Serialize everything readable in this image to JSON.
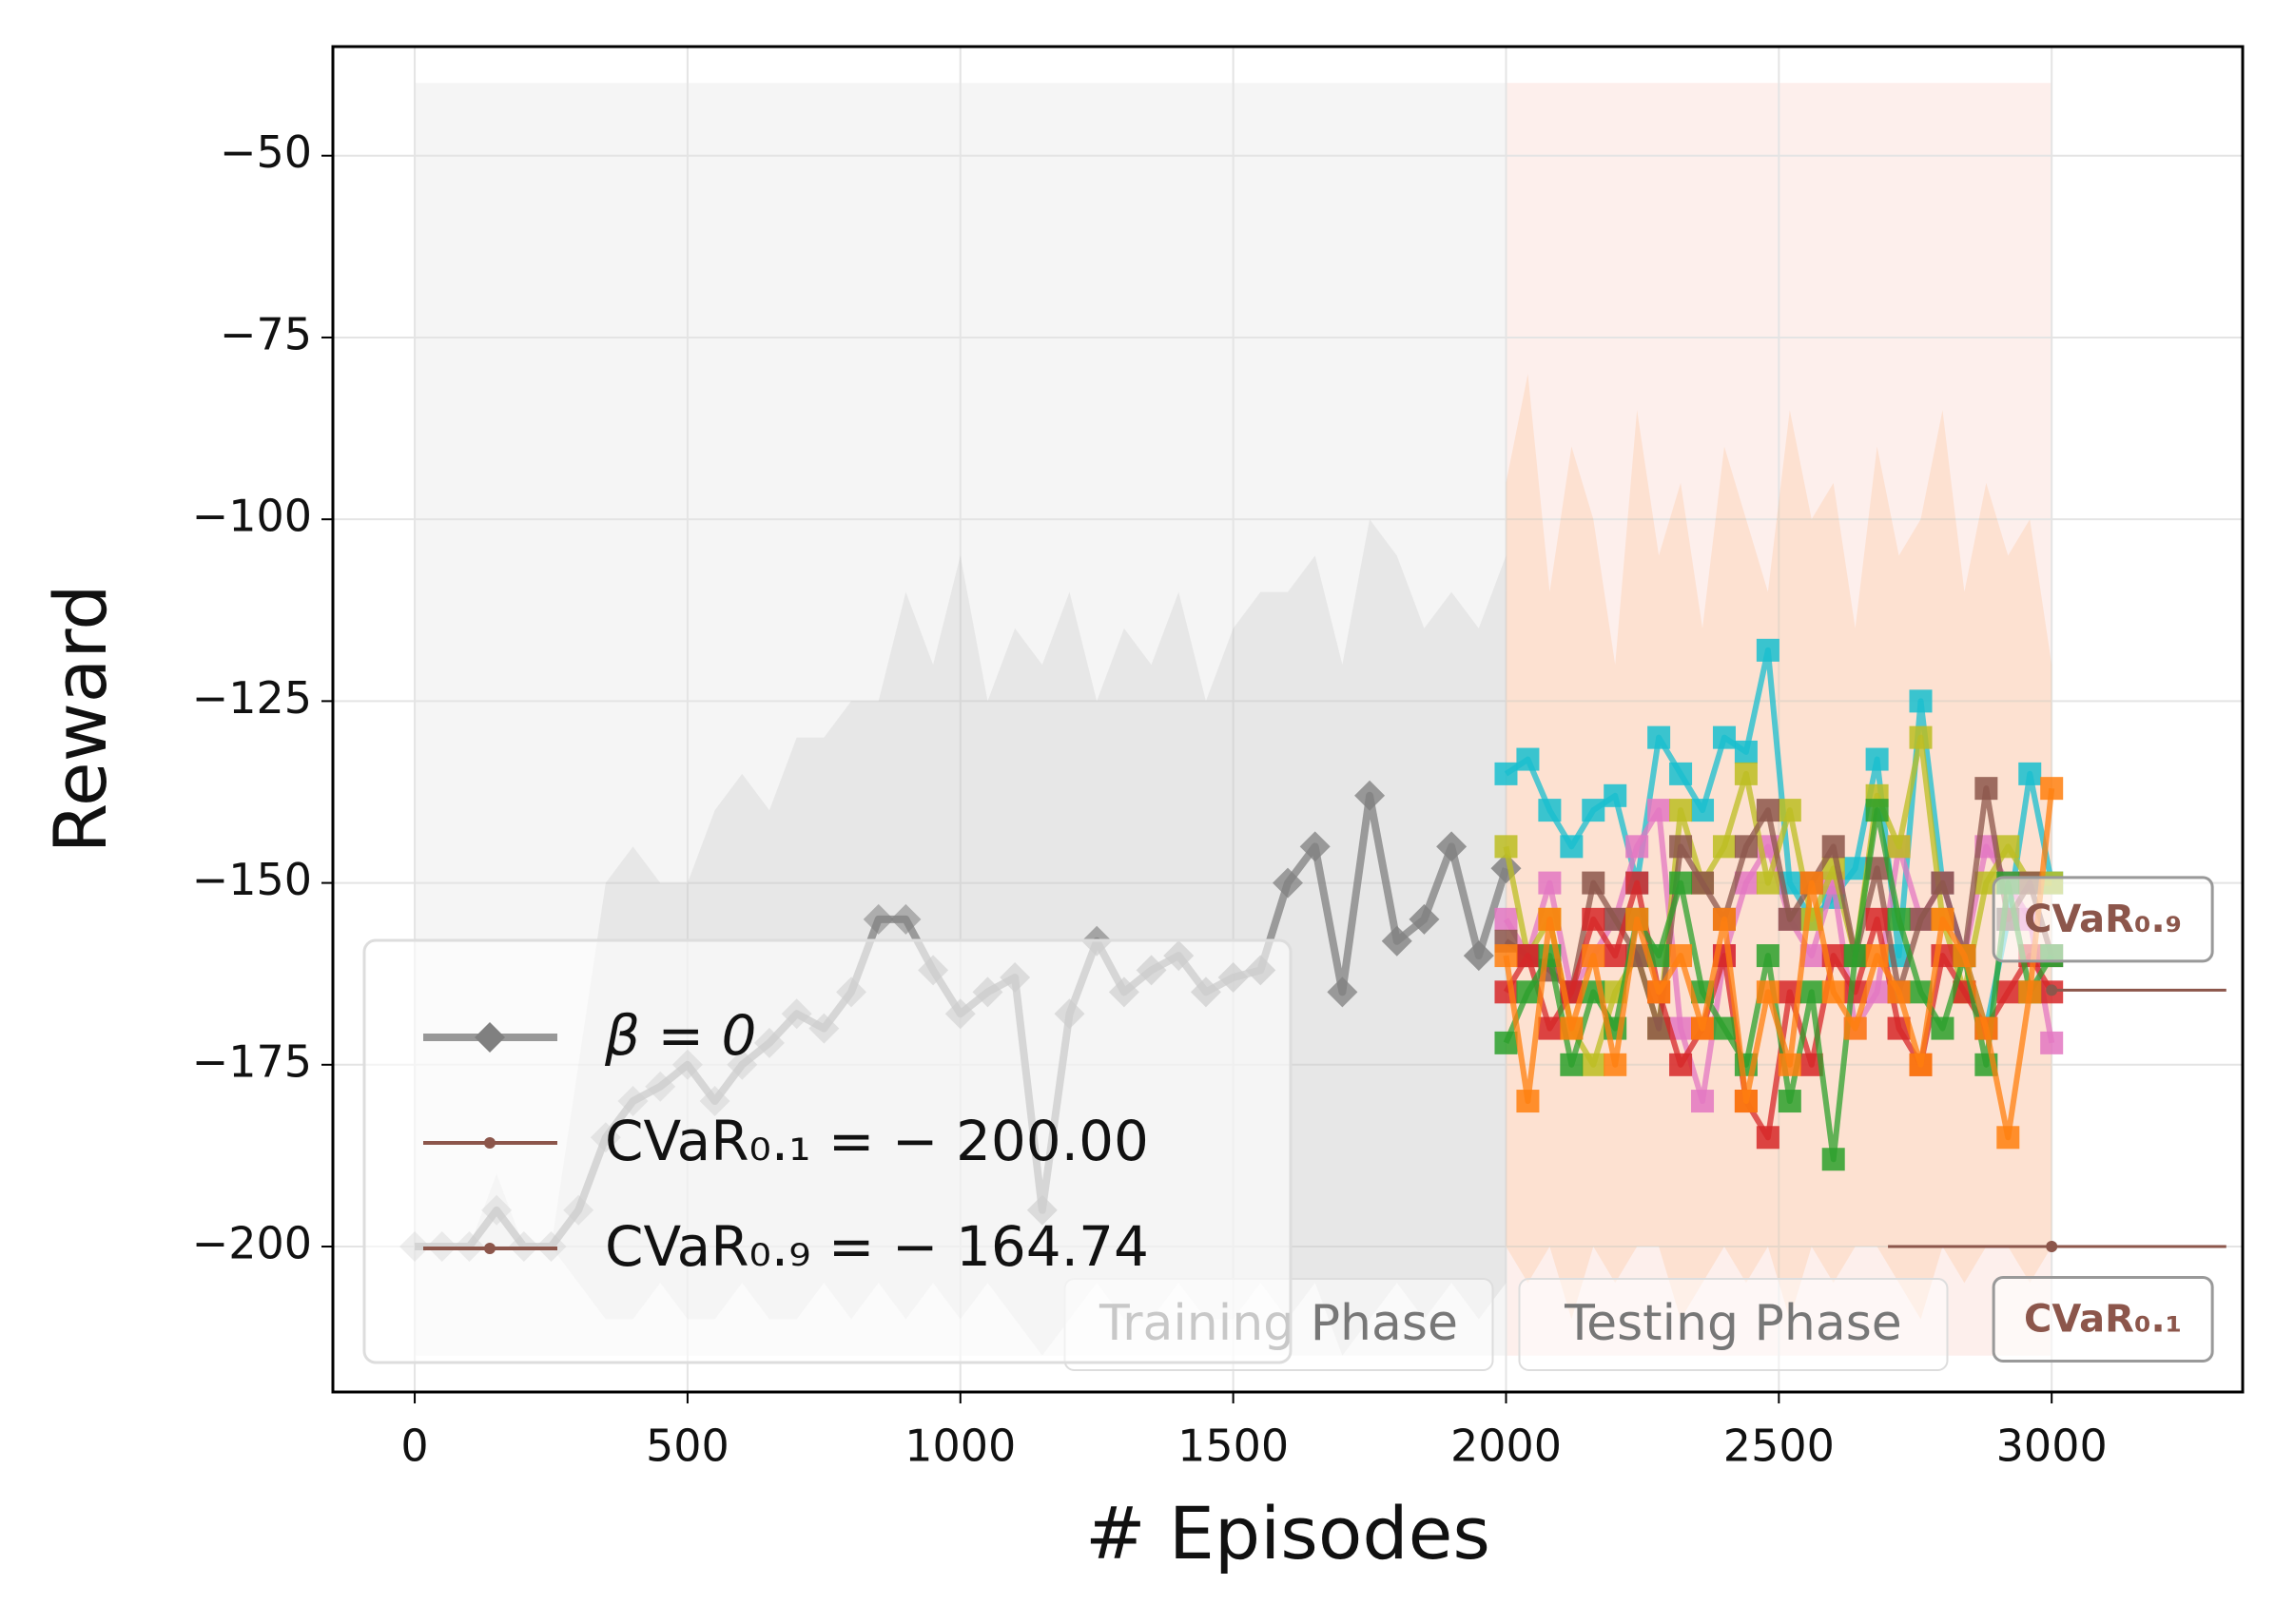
{
  "chart_data": {
    "type": "line",
    "x_label": "# Episodes",
    "y_label": "Reward",
    "xlim": [
      -150,
      3350
    ],
    "ylim": [
      -220,
      -35
    ],
    "xticks": [
      0,
      500,
      1000,
      1500,
      2000,
      2500,
      3000
    ],
    "yticks": [
      {
        "value": -50,
        "label": "−50"
      },
      {
        "value": -75,
        "label": "−75"
      },
      {
        "value": -100,
        "label": "−100"
      },
      {
        "value": -125,
        "label": "−125"
      },
      {
        "value": -150,
        "label": "−150"
      },
      {
        "value": -175,
        "label": "−175"
      },
      {
        "value": -200,
        "label": "−200"
      }
    ],
    "grid": true,
    "legend": "lower left",
    "spans": [
      {
        "label": "Training Phase",
        "x": [
          0,
          2000
        ],
        "y": [
          -215,
          -40
        ],
        "color": "#f2f2f2"
      },
      {
        "label": "Testing Phase",
        "x": [
          2000,
          3000
        ],
        "y": [
          -215,
          -40
        ],
        "color": "#fdebe7"
      }
    ],
    "series": [
      {
        "name": "β = 0",
        "color": "#808080",
        "marker": "diamond",
        "x": [
          0,
          50,
          100,
          150,
          200,
          250,
          300,
          350,
          400,
          450,
          500,
          550,
          600,
          650,
          700,
          750,
          800,
          850,
          900,
          950,
          1000,
          1050,
          1100,
          1150,
          1200,
          1250,
          1300,
          1350,
          1400,
          1450,
          1500,
          1550,
          1600,
          1650,
          1700,
          1750,
          1800,
          1850,
          1900,
          1950,
          2000
        ],
        "values": [
          -200,
          -200,
          -200,
          -195,
          -200,
          -200,
          -195,
          -185,
          -180,
          -178,
          -175,
          -180,
          -175,
          -172,
          -168,
          -170,
          -165,
          -155,
          -155,
          -162,
          -168,
          -165,
          -163,
          -195,
          -168,
          -158,
          -165,
          -162,
          -160,
          -165,
          -163,
          -162,
          -150,
          -145,
          -165,
          -138,
          -158,
          -155,
          -145,
          -160,
          -148
        ],
        "upper": [
          -200,
          -200,
          -200,
          -190,
          -200,
          -200,
          -175,
          -150,
          -145,
          -150,
          -150,
          -140,
          -135,
          -140,
          -130,
          -130,
          -125,
          -125,
          -110,
          -120,
          -105,
          -125,
          -115,
          -120,
          -110,
          -125,
          -115,
          -120,
          -110,
          -125,
          -115,
          -110,
          -110,
          -105,
          -120,
          -100,
          -105,
          -115,
          -110,
          -115,
          -105
        ],
        "lower": [
          -200,
          -200,
          -200,
          -200,
          -200,
          -200,
          -205,
          -210,
          -210,
          -205,
          -210,
          -210,
          -205,
          -210,
          -210,
          -205,
          -210,
          -205,
          -210,
          -205,
          -210,
          -205,
          -210,
          -215,
          -210,
          -205,
          -210,
          -210,
          -205,
          -210,
          -210,
          -205,
          -210,
          -205,
          -215,
          -210,
          -205,
          -210,
          -205,
          -210,
          -205
        ]
      },
      {
        "color": "#17becf",
        "marker": "square",
        "x": [
          2000,
          2040,
          2080,
          2120,
          2160,
          2200,
          2240,
          2280,
          2320,
          2360,
          2400,
          2440,
          2480,
          2520,
          2560,
          2600,
          2640,
          2680,
          2720,
          2760,
          2800,
          2840,
          2880,
          2920,
          2960,
          3000
        ],
        "values": [
          -135,
          -133,
          -140,
          -145,
          -140,
          -138,
          -150,
          -130,
          -135,
          -140,
          -130,
          -132,
          -118,
          -150,
          -155,
          -152,
          -148,
          -133,
          -160,
          -125,
          -150,
          -160,
          -170,
          -155,
          -135,
          -150
        ]
      },
      {
        "color": "#e377c2",
        "marker": "square",
        "x": [
          2000,
          2040,
          2080,
          2120,
          2160,
          2200,
          2240,
          2280,
          2320,
          2360,
          2400,
          2440,
          2480,
          2520,
          2560,
          2600,
          2640,
          2680,
          2720,
          2760,
          2800,
          2840,
          2880,
          2920,
          2960,
          3000
        ],
        "values": [
          -155,
          -160,
          -150,
          -165,
          -160,
          -155,
          -145,
          -140,
          -170,
          -180,
          -160,
          -150,
          -145,
          -155,
          -160,
          -150,
          -170,
          -165,
          -145,
          -155,
          -150,
          -160,
          -145,
          -150,
          -155,
          -172
        ]
      },
      {
        "color": "#bcbd22",
        "marker": "square",
        "x": [
          2000,
          2040,
          2080,
          2120,
          2160,
          2200,
          2240,
          2280,
          2320,
          2360,
          2400,
          2440,
          2480,
          2520,
          2560,
          2600,
          2640,
          2680,
          2720,
          2760,
          2800,
          2840,
          2880,
          2920,
          2960,
          3000
        ],
        "values": [
          -145,
          -160,
          -155,
          -170,
          -175,
          -165,
          -160,
          -170,
          -140,
          -150,
          -145,
          -135,
          -150,
          -140,
          -155,
          -148,
          -160,
          -138,
          -145,
          -130,
          -155,
          -165,
          -150,
          -145,
          -150,
          -150
        ]
      },
      {
        "color": "#8c564b",
        "marker": "square",
        "x": [
          2000,
          2040,
          2080,
          2120,
          2160,
          2200,
          2240,
          2280,
          2320,
          2360,
          2400,
          2440,
          2480,
          2520,
          2560,
          2600,
          2640,
          2680,
          2720,
          2760,
          2800,
          2840,
          2880,
          2920,
          2960,
          3000
        ],
        "values": [
          -158,
          -160,
          -162,
          -165,
          -150,
          -155,
          -160,
          -170,
          -145,
          -150,
          -155,
          -145,
          -140,
          -155,
          -150,
          -145,
          -160,
          -148,
          -165,
          -155,
          -150,
          -160,
          -137,
          -155,
          -150,
          -160
        ]
      },
      {
        "color": "#d62728",
        "marker": "square",
        "x": [
          2000,
          2040,
          2080,
          2120,
          2160,
          2200,
          2240,
          2280,
          2320,
          2360,
          2400,
          2440,
          2480,
          2520,
          2560,
          2600,
          2640,
          2680,
          2720,
          2760,
          2800,
          2840,
          2880,
          2920,
          2960,
          3000
        ],
        "values": [
          -165,
          -160,
          -170,
          -165,
          -155,
          -160,
          -150,
          -165,
          -175,
          -170,
          -160,
          -180,
          -185,
          -165,
          -175,
          -160,
          -165,
          -155,
          -170,
          -175,
          -160,
          -165,
          -170,
          -165,
          -160,
          -165
        ]
      },
      {
        "color": "#2ca02c",
        "marker": "square",
        "x": [
          2000,
          2040,
          2080,
          2120,
          2160,
          2200,
          2240,
          2280,
          2320,
          2360,
          2400,
          2440,
          2480,
          2520,
          2560,
          2600,
          2640,
          2680,
          2720,
          2760,
          2800,
          2840,
          2880,
          2920,
          2960,
          3000
        ],
        "values": [
          -172,
          -165,
          -160,
          -175,
          -165,
          -170,
          -155,
          -160,
          -150,
          -165,
          -170,
          -175,
          -160,
          -180,
          -165,
          -188,
          -160,
          -140,
          -155,
          -165,
          -170,
          -160,
          -175,
          -150,
          -165,
          -160
        ]
      },
      {
        "color": "#ff7f0e",
        "marker": "square",
        "x": [
          2000,
          2040,
          2080,
          2120,
          2160,
          2200,
          2240,
          2280,
          2320,
          2360,
          2400,
          2440,
          2480,
          2520,
          2560,
          2600,
          2640,
          2680,
          2720,
          2760,
          2800,
          2840,
          2880,
          2920,
          2960,
          3000
        ],
        "values": [
          -160,
          -180,
          -155,
          -170,
          -160,
          -175,
          -155,
          -165,
          -160,
          -170,
          -155,
          -180,
          -165,
          -175,
          -150,
          -165,
          -170,
          -160,
          -165,
          -175,
          -155,
          -160,
          -170,
          -185,
          -165,
          -137
        ],
        "upper": [
          -95,
          -80,
          -110,
          -90,
          -100,
          -120,
          -85,
          -105,
          -95,
          -115,
          -90,
          -100,
          -110,
          -85,
          -100,
          -95,
          -115,
          -90,
          -105,
          -100,
          -85,
          -110,
          -95,
          -105,
          -100,
          -120
        ],
        "lower": [
          -200,
          -205,
          -200,
          -210,
          -200,
          -205,
          -200,
          -200,
          -210,
          -205,
          -200,
          -205,
          -200,
          -210,
          -200,
          -205,
          -200,
          -200,
          -205,
          -210,
          -200,
          -205,
          -200,
          -200,
          -205,
          -200
        ]
      }
    ],
    "hlines": [
      {
        "name": "CVaR₀.₁ = − 200.00",
        "value": -200,
        "color": "#8c564b",
        "x": [
          2700,
          3320
        ],
        "marker_x": 3000
      },
      {
        "name": "CVaR₀.₉ = − 164.74",
        "value": -164.74,
        "color": "#8c564b",
        "x": [
          3000,
          3320
        ],
        "marker_x": 3000
      }
    ],
    "annotations": [
      {
        "text": "CVaR₀.₉",
        "x": 3094,
        "y": -155,
        "color": "#8c564b"
      },
      {
        "text": "CVaR₀.₁",
        "x": 3094,
        "y": -210,
        "color": "#8c564b"
      }
    ]
  }
}
